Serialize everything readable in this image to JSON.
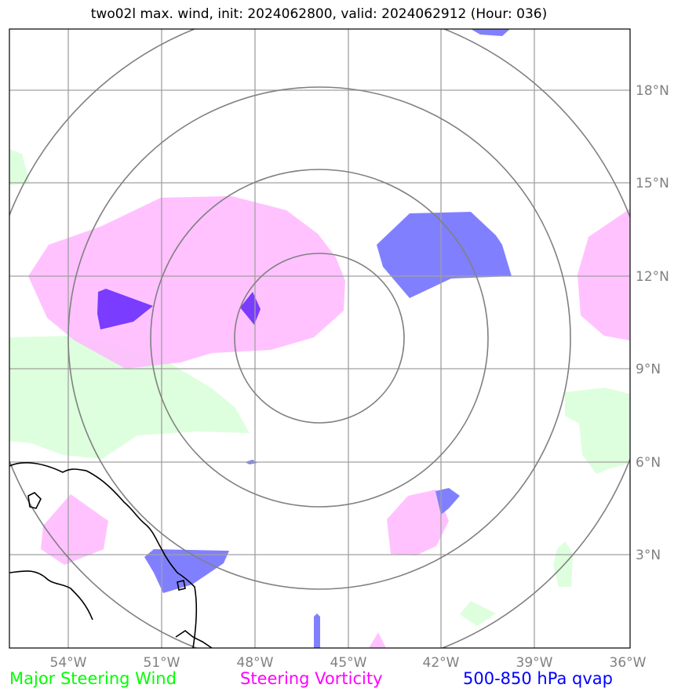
{
  "title": "two02l max. wind, init: 2024062800, valid: 2024062912 (Hour: 036)",
  "map": {
    "lon_ticks": [
      "54°W",
      "51°W",
      "48°W",
      "45°W",
      "42°W",
      "39°W",
      "36°W"
    ],
    "lat_ticks": [
      "18°N",
      "15°N",
      "12°N",
      "9°N",
      "6°N",
      "3°N"
    ],
    "lon_range": [
      -56,
      -36
    ],
    "lat_range": [
      0,
      20
    ],
    "grid": true,
    "range_rings": true
  },
  "colors": {
    "wind": "#00ff00",
    "vorticity": "#ff00ff",
    "qvap": "#0000ff",
    "wind_fill": "#ddffdd",
    "vorticity_fill": "#ffbbff",
    "qvap_fill": "#8080ff"
  },
  "legend": {
    "wind": "Major Steering Wind",
    "vorticity": "Steering Vorticity",
    "qvap": "500-850 hPa qvap"
  }
}
